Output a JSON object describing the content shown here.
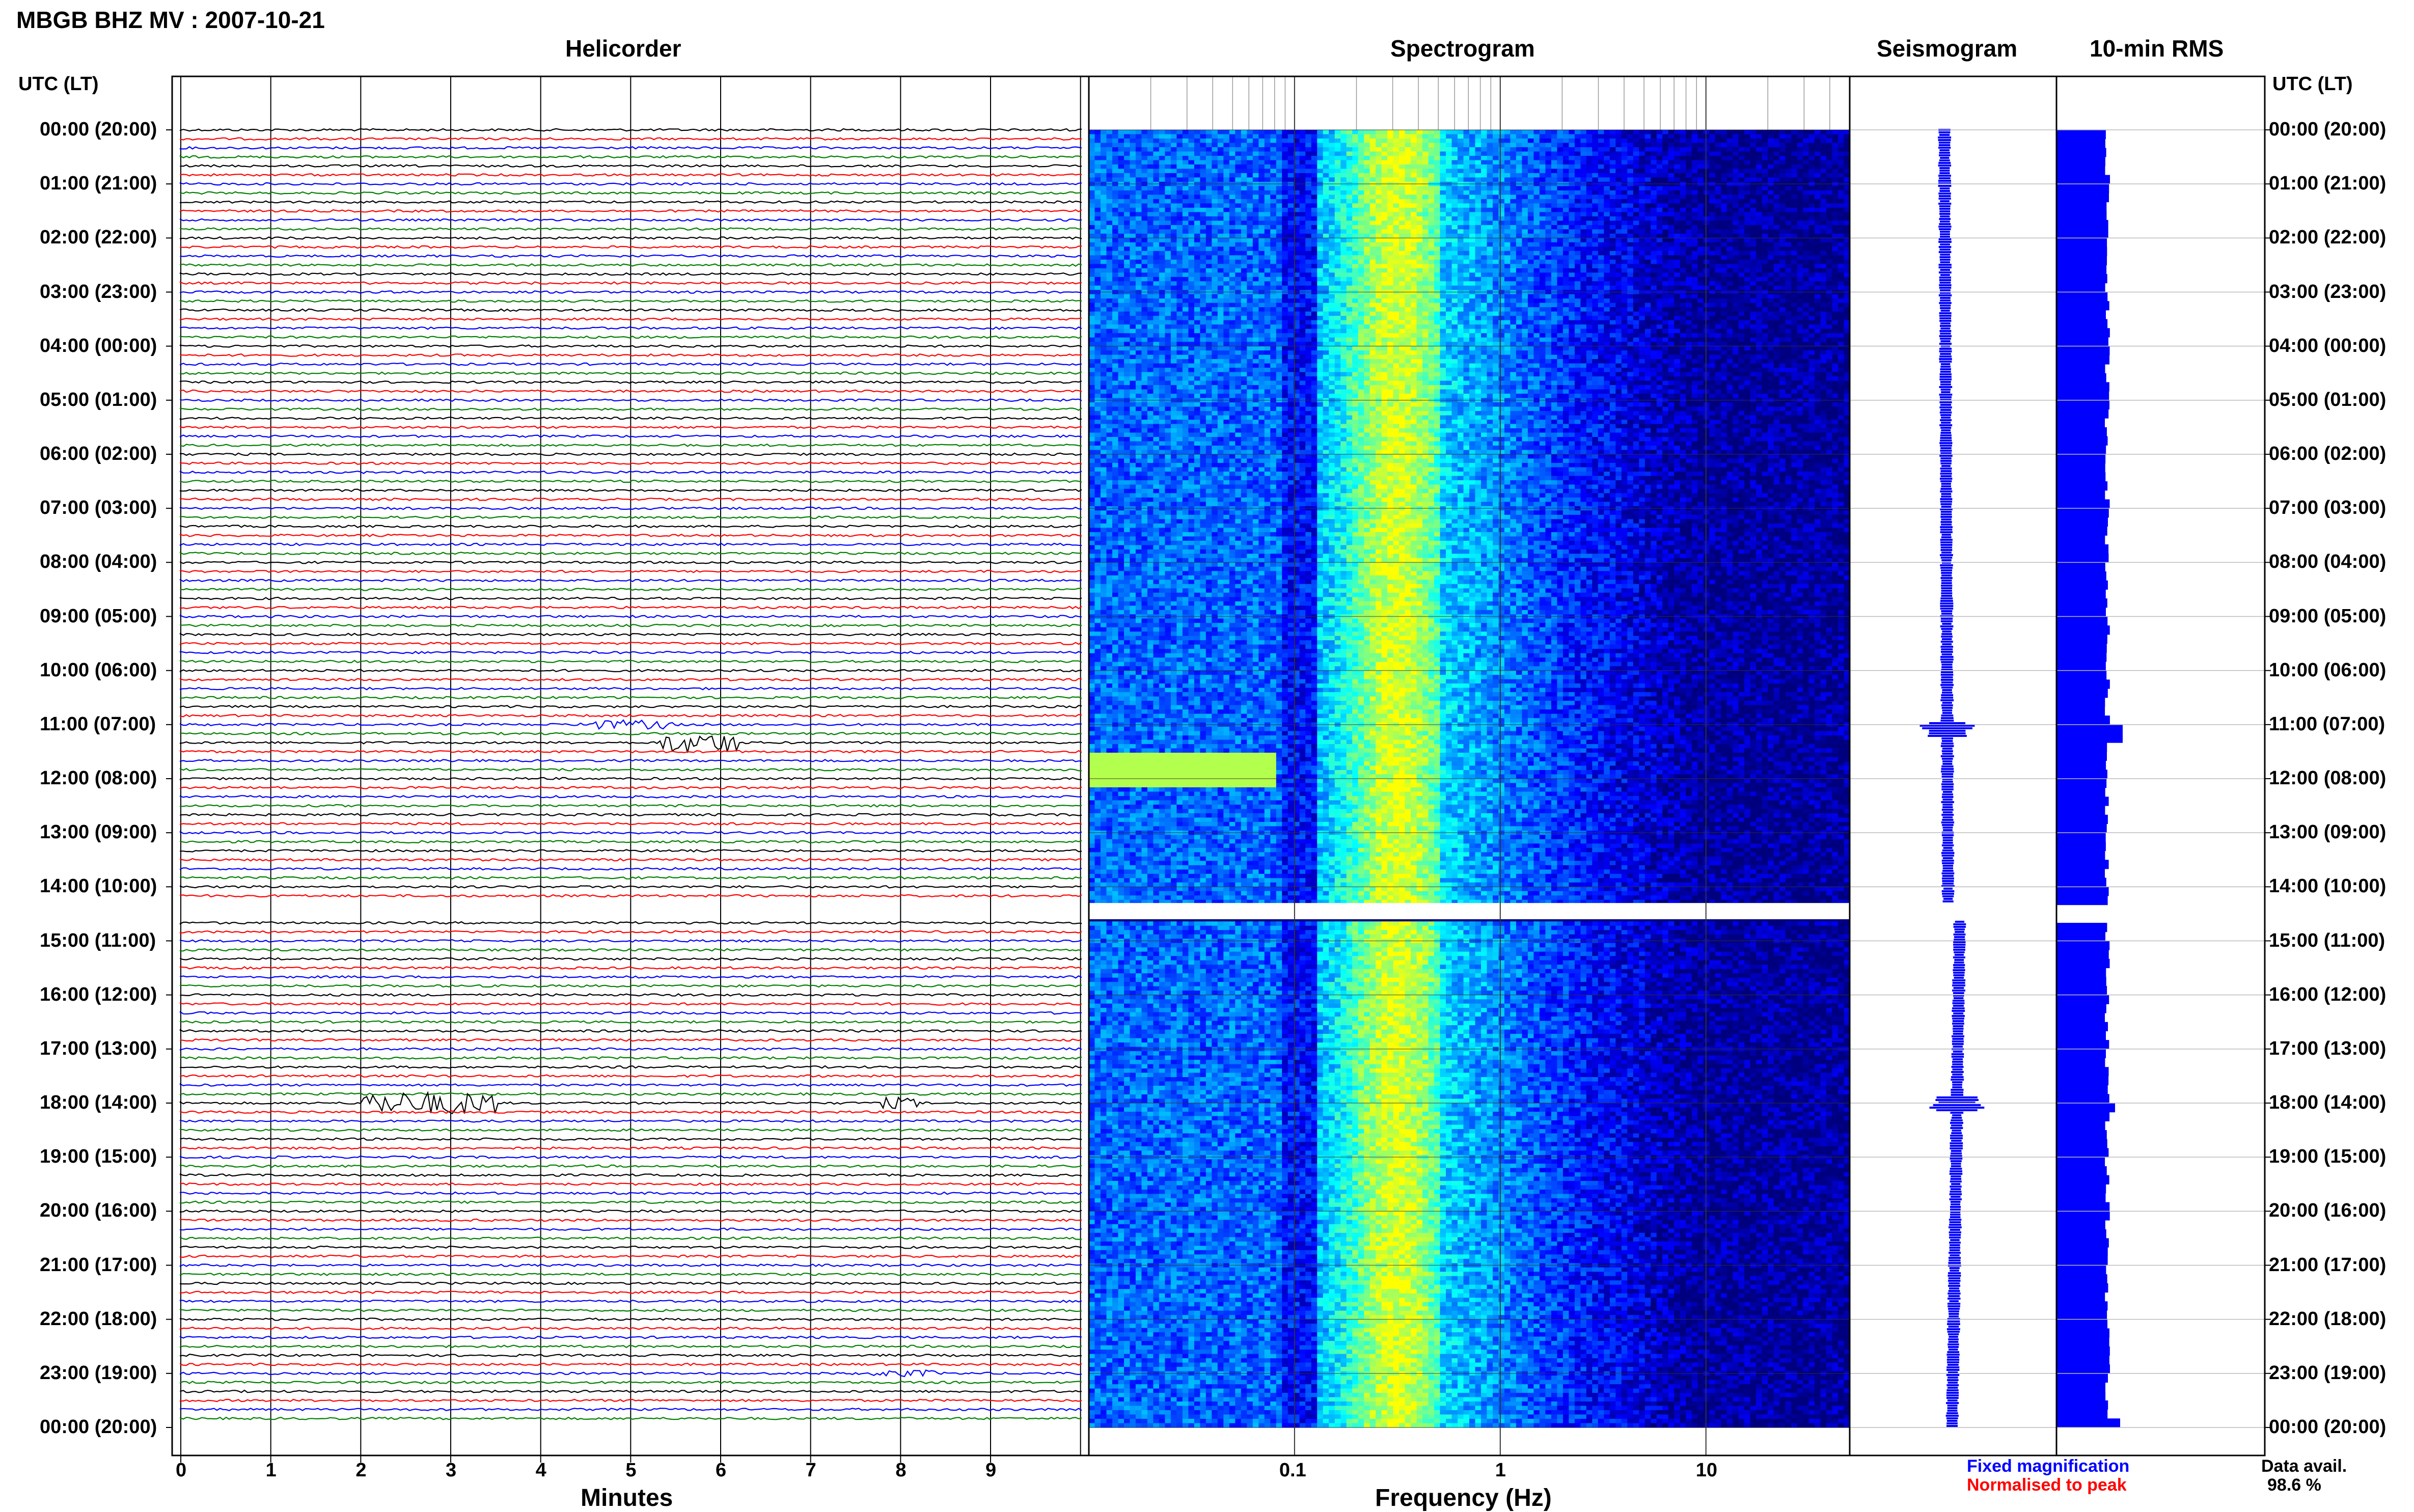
{
  "header": {
    "title": "MBGB BHZ MV : 2007-10-21"
  },
  "panels": {
    "helicorder": "Helicorder",
    "spectrogram": "Spectrogram",
    "seismogram": "Seismogram",
    "rms": "10-min RMS"
  },
  "axes": {
    "time_label_left": "UTC (LT)",
    "time_label_right": "UTC (LT)",
    "helicorder_xlabel": "Minutes",
    "spectrogram_xlabel": "Frequency (Hz)"
  },
  "legend": {
    "fixed": "Fixed magnification",
    "normalised": "Normalised to peak",
    "fixed_color": "#0000ff",
    "normalised_color": "#ff0000"
  },
  "data_availability": {
    "label": "Data avail.",
    "value": "98.6 %"
  },
  "chart_data": {
    "type": "heatmap",
    "time_ticks": [
      "00:00 (20:00)",
      "01:00 (21:00)",
      "02:00 (22:00)",
      "03:00 (23:00)",
      "04:00 (00:00)",
      "05:00 (01:00)",
      "06:00 (02:00)",
      "07:00 (03:00)",
      "08:00 (04:00)",
      "09:00 (05:00)",
      "10:00 (06:00)",
      "11:00 (07:00)",
      "12:00 (08:00)",
      "13:00 (09:00)",
      "14:00 (10:00)",
      "15:00 (11:00)",
      "16:00 (12:00)",
      "17:00 (13:00)",
      "18:00 (14:00)",
      "19:00 (15:00)",
      "20:00 (16:00)",
      "21:00 (17:00)",
      "22:00 (18:00)",
      "23:00 (19:00)",
      "00:00 (20:00)"
    ],
    "helicorder": {
      "minute_ticks": [
        "0",
        "1",
        "2",
        "3",
        "4",
        "5",
        "6",
        "7",
        "8",
        "9"
      ],
      "xlim": [
        0,
        10
      ],
      "trace_colors": [
        "#000000",
        "#ff0000",
        "#0000ff",
        "#008000"
      ],
      "traces_per_hour": 6,
      "gap_utc_hours": [
        14.3,
        14.6
      ],
      "events": [
        {
          "utc_hour": 11.0,
          "minute_start": 4.4,
          "minute_end": 5.5,
          "amp": 2.0
        },
        {
          "utc_hour": 11.33,
          "minute_start": 5.3,
          "minute_end": 6.2,
          "amp": 4.5
        },
        {
          "utc_hour": 18.0,
          "minute_start": 2.0,
          "minute_end": 3.5,
          "amp": 5.0
        },
        {
          "utc_hour": 18.0,
          "minute_start": 7.8,
          "minute_end": 8.2,
          "amp": 2.5
        },
        {
          "utc_hour": 23.0,
          "minute_start": 7.7,
          "minute_end": 8.4,
          "amp": 1.5
        }
      ]
    },
    "spectrogram": {
      "freq_ticks": [
        "0.1",
        "1",
        "10"
      ],
      "xlim_hz": [
        0.01,
        50
      ],
      "xscale": "log",
      "colormap": [
        "#00007f",
        "#0000ff",
        "#0080ff",
        "#00ffff",
        "#80ff80",
        "#ffff00"
      ]
    },
    "seismogram": {
      "gap_utc_hours": [
        14.3,
        14.6
      ]
    },
    "rms": {
      "gap_utc_hours": [
        14.3,
        14.6
      ]
    }
  }
}
